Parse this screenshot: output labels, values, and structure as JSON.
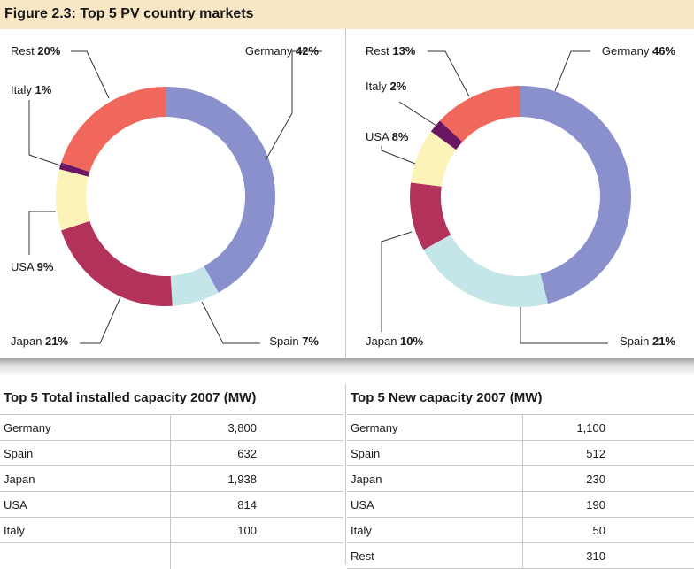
{
  "figure_title": "Figure 2.3: Top 5 PV country markets",
  "chart_data": [
    {
      "type": "pie",
      "variant": "donut",
      "labels": [
        "Germany",
        "Spain",
        "Japan",
        "USA",
        "Italy",
        "Rest"
      ],
      "values": [
        42,
        7,
        21,
        9,
        1,
        20
      ],
      "value_labels": [
        "42%",
        "7%",
        "21%",
        "9%",
        "1%",
        "20%"
      ],
      "colors": [
        "#8a90cc",
        "#c4e6e8",
        "#b3325a",
        "#fbf3b8",
        "#6a1662",
        "#f0685c"
      ]
    },
    {
      "type": "pie",
      "variant": "donut",
      "labels": [
        "Germany",
        "Spain",
        "Japan",
        "USA",
        "Italy",
        "Rest"
      ],
      "values": [
        46,
        21,
        10,
        8,
        2,
        13
      ],
      "value_labels": [
        "46%",
        "21%",
        "10%",
        "8%",
        "2%",
        "13%"
      ],
      "colors": [
        "#8a90cc",
        "#c4e6e8",
        "#b3325a",
        "#fbf3b8",
        "#6a1662",
        "#f0685c"
      ]
    }
  ],
  "tables": [
    {
      "title": "Top 5 Total installed capacity 2007 (MW)",
      "rows": [
        {
          "name": "Germany",
          "value": "3,800"
        },
        {
          "name": "Spain",
          "value": "632"
        },
        {
          "name": "Japan",
          "value": "1,938"
        },
        {
          "name": "USA",
          "value": "814"
        },
        {
          "name": "Italy",
          "value": "100"
        }
      ]
    },
    {
      "title": "Top 5 New capacity 2007 (MW)",
      "rows": [
        {
          "name": "Germany",
          "value": "1,100"
        },
        {
          "name": "Spain",
          "value": "512"
        },
        {
          "name": "Japan",
          "value": "230"
        },
        {
          "name": "USA",
          "value": "190"
        },
        {
          "name": "Italy",
          "value": "50"
        },
        {
          "name": "Rest",
          "value": "310"
        }
      ]
    }
  ]
}
